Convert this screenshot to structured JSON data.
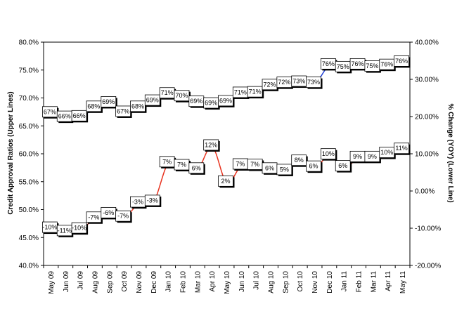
{
  "chart_data": {
    "type": "line",
    "x": [
      "May 09",
      "Jun 09",
      "Jul 09",
      "Aug 09",
      "Sep 09",
      "Oct 09",
      "Nov 09",
      "Dec 09",
      "Jan 10",
      "Feb 10",
      "Mar 10",
      "Apr 10",
      "May 10",
      "Jun 10",
      "Jul 10",
      "Aug 10",
      "Sep 10",
      "Oct 10",
      "Nov 10",
      "Dec 10",
      "Jan 11",
      "Feb 11",
      "Mar 11",
      "Apr 11",
      "May 11"
    ],
    "series": [
      {
        "axis": "left",
        "color": "#1f3fd6",
        "values": [
          67.2,
          66.4,
          66.5,
          68.2,
          69.0,
          67.3,
          68.2,
          69.3,
          70.6,
          70.1,
          69.1,
          68.8,
          69.2,
          70.7,
          70.8,
          72.1,
          72.5,
          72.7,
          72.5,
          75.8,
          75.3,
          75.8,
          75.4,
          75.7,
          76.3
        ],
        "labels": [
          "67%",
          "66%",
          "66%",
          "68%",
          "69%",
          "67%",
          "68%",
          "69%",
          "71%",
          "70%",
          "69%",
          "69%",
          "69%",
          "71%",
          "71%",
          "72%",
          "72%",
          "73%",
          "73%",
          "76%",
          "75%",
          "76%",
          "75%",
          "76%",
          "76%"
        ]
      },
      {
        "axis": "right",
        "color": "#e8321e",
        "values": [
          -10.2,
          -11.1,
          -10.4,
          -7.5,
          -6.3,
          -7.2,
          -3.4,
          -3.0,
          7.4,
          6.6,
          5.7,
          11.9,
          2.2,
          6.8,
          6.7,
          5.7,
          5.3,
          7.8,
          6.2,
          9.5,
          6.3,
          8.8,
          8.8,
          9.9,
          11.0
        ],
        "labels": [
          "-10%",
          "-11%",
          "-10%",
          "-7%",
          "-6%",
          "-7%",
          "-3%",
          "-3%",
          "7%",
          "7%",
          "6%",
          "12%",
          "2%",
          "7%",
          "7%",
          "6%",
          "5%",
          "8%",
          "6%",
          "10%",
          "6%",
          "9%",
          "9%",
          "10%",
          "11%"
        ]
      }
    ],
    "ylabel": "Credit Approval Ratios (Upper Lines)",
    "y2label": "% Change (YOY) (Lower Line)",
    "ylim": [
      40,
      80
    ],
    "y2lim": [
      -20,
      40
    ],
    "yticks": [
      "40.0%",
      "45.0%",
      "50.0%",
      "55.0%",
      "60.0%",
      "65.0%",
      "70.0%",
      "75.0%",
      "80.0%"
    ],
    "y2ticks": [
      "-20.00%",
      "-10.00%",
      "0.00%",
      "10.00%",
      "20.00%",
      "30.00%",
      "40.00%"
    ],
    "grid": false,
    "legend": "none"
  }
}
